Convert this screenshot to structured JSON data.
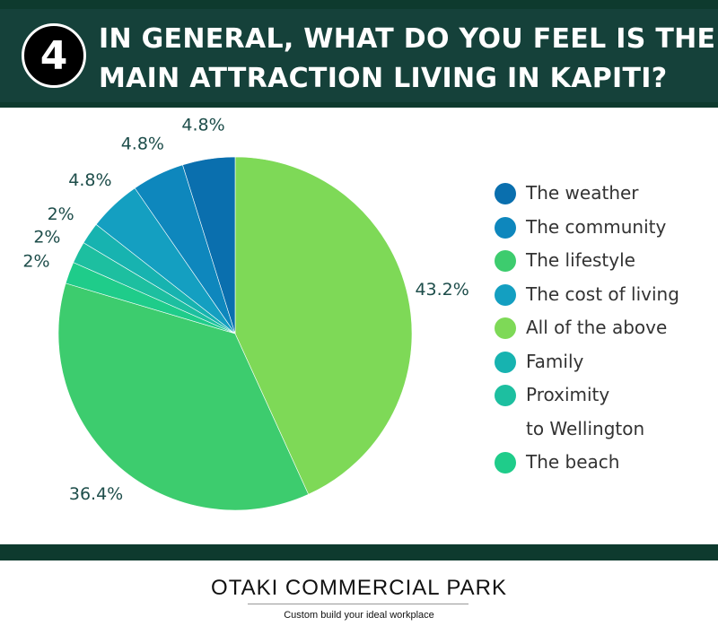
{
  "header": {
    "badge_number": "4",
    "title_line1": "IN GENERAL, WHAT DO YOU FEEL IS THE",
    "title_line2": "MAIN ATTRACTION LIVING IN KAPITI?"
  },
  "chart_data": {
    "type": "pie",
    "title": "IN GENERAL, WHAT DO YOU FEEL IS THE MAIN ATTRACTION LIVING IN KAPITI?",
    "categories": [
      "The weather",
      "The community",
      "The lifestyle",
      "The cost of living",
      "All of the above",
      "Family",
      "Proximity to Wellington",
      "The beach"
    ],
    "slices": [
      {
        "label": "All of the above",
        "value": 43.2,
        "display": "43.2%",
        "color": "#7ed957"
      },
      {
        "label": "The lifestyle",
        "value": 36.4,
        "display": "36.4%",
        "color": "#3dcc6e"
      },
      {
        "label": "The beach",
        "value": 2,
        "display": "2%",
        "color": "#1fcc8a"
      },
      {
        "label": "Proximity to Wellington",
        "value": 2,
        "display": "2%",
        "color": "#1dbfa0"
      },
      {
        "label": "Family",
        "value": 2,
        "display": "2%",
        "color": "#17b3b0"
      },
      {
        "label": "The cost of living",
        "value": 4.8,
        "display": "4.8%",
        "color": "#149fc1"
      },
      {
        "label": "The community",
        "value": 4.8,
        "display": "4.8%",
        "color": "#0e87bd"
      },
      {
        "label": "The weather",
        "value": 4.8,
        "display": "4.8%",
        "color": "#0a6fae"
      }
    ],
    "legend_position": "right",
    "label_color": "#1d4d4a"
  },
  "legend": {
    "items": [
      {
        "label": "The weather",
        "color": "#0a6fae"
      },
      {
        "label": "The community",
        "color": "#0e87bd"
      },
      {
        "label": "The lifestyle",
        "color": "#3dcc6e"
      },
      {
        "label": "The cost of living",
        "color": "#149fc1"
      },
      {
        "label": "All of the above",
        "color": "#7ed957"
      },
      {
        "label": "Family",
        "color": "#17b3b0"
      },
      {
        "label": "Proximity",
        "label_cont": "to Wellington",
        "color": "#1dbfa0"
      },
      {
        "label": "The beach",
        "color": "#1fcc8a"
      }
    ]
  },
  "footer": {
    "brand": "OTAKI COMMERCIAL PARK",
    "tagline": "Custom build your ideal workplace"
  },
  "colors": {
    "header_bg": "#15413a",
    "band": "#0e3a2e"
  }
}
